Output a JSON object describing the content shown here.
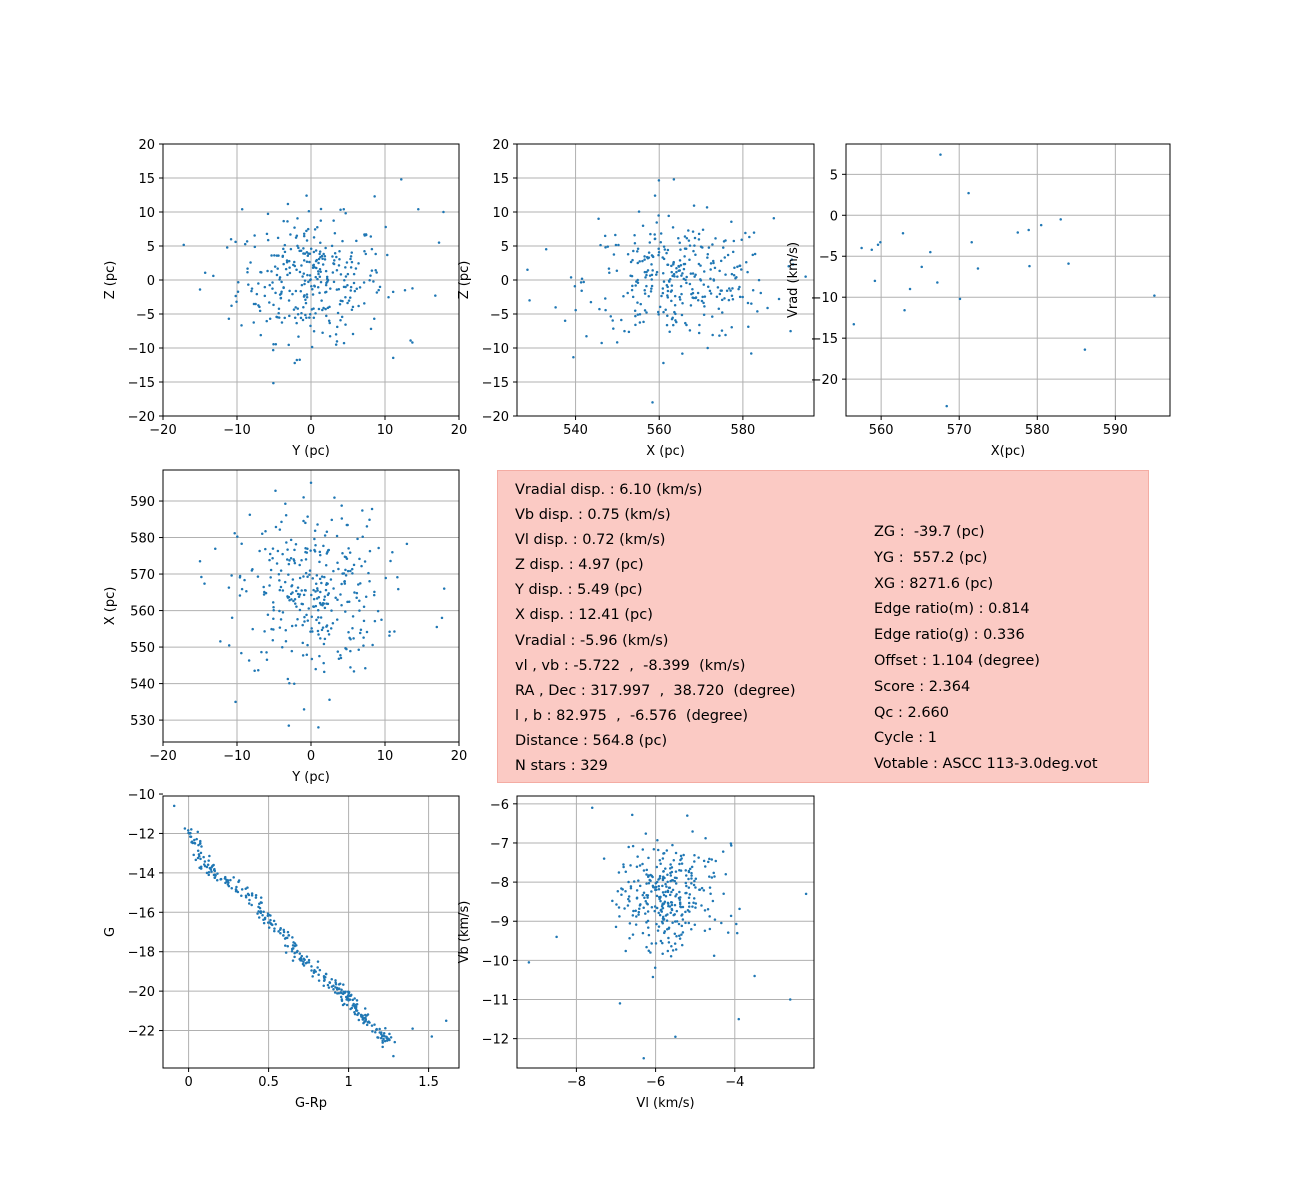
{
  "colors": {
    "points": "#1f77b4",
    "grid": "#b0b0b0",
    "axes": "#000000",
    "info_bg": "#fbcac4"
  },
  "info_panel": {
    "left_lines": [
      "Vradial disp. : 6.10 (km/s)",
      "Vb disp. : 0.75 (km/s)",
      "Vl disp. : 0.72 (km/s)",
      "Z disp. : 4.97 (pc)",
      "Y disp. : 5.49 (pc)",
      "X disp. : 12.41 (pc)",
      "Vradial : -5.96 (km/s)",
      "vl , vb : -5.722  ,  -8.399  (km/s)",
      "RA , Dec : 317.997  ,  38.720  (degree)",
      "l , b : 82.975  ,  -6.576  (degree)",
      "Distance : 564.8 (pc)",
      "N stars : 329"
    ],
    "right_lines": [
      "ZG :  -39.7 (pc)",
      "YG :  557.2 (pc)",
      "XG : 8271.6 (pc)",
      "Edge ratio(m) : 0.814",
      "Edge ratio(g) : 0.336",
      "Offset : 1.104 (degree)",
      "Score : 2.364",
      "Qc : 2.660",
      "Cycle : 1",
      "Votable : ASCC 113-3.0deg.vot"
    ]
  },
  "chart_data": [
    {
      "id": "yz",
      "type": "scatter",
      "xlabel": "Y (pc)",
      "ylabel": "Z (pc)",
      "xlim": [
        -20,
        20
      ],
      "ylim": [
        -20,
        20
      ],
      "xticks": [
        -20,
        -10,
        0,
        10,
        20
      ],
      "yticks": [
        -20,
        -15,
        -10,
        -5,
        0,
        5,
        10,
        15,
        20
      ],
      "grid": true,
      "n_points": 329,
      "center": [
        0,
        0
      ],
      "spread": [
        5.49,
        4.97
      ],
      "points": [
        [
          -15,
          -1.4
        ],
        [
          12.2,
          14.8
        ],
        [
          17.9,
          10
        ],
        [
          -9.3,
          10.4
        ],
        [
          -0.6,
          12.4
        ],
        [
          14.5,
          10.4
        ],
        [
          12.7,
          -1.5
        ],
        [
          13.7,
          -9.2
        ],
        [
          16.8,
          -2.3
        ],
        [
          -11.1,
          -5.7
        ],
        [
          3.4,
          -9.5
        ],
        [
          8.6,
          12.3
        ],
        [
          -2.2,
          -12.2
        ],
        [
          -13.2,
          0.6
        ],
        [
          17.3,
          5.5
        ],
        [
          -10.8,
          6
        ]
      ]
    },
    {
      "id": "xz",
      "type": "scatter",
      "xlabel": "X (pc)",
      "ylabel": "Z (pc)",
      "xlim": [
        526,
        597
      ],
      "ylim": [
        -20,
        20
      ],
      "xticks": [
        540,
        560,
        580
      ],
      "yticks": [
        -20,
        -15,
        -10,
        -5,
        0,
        5,
        10,
        15,
        20
      ],
      "grid": true,
      "n_points": 329,
      "center": [
        564.8,
        0
      ],
      "spread": [
        12.41,
        4.97
      ],
      "points": [
        [
          529,
          -3
        ],
        [
          595,
          0.5
        ],
        [
          563.5,
          14.8
        ],
        [
          559,
          12.4
        ],
        [
          582,
          -10.8
        ],
        [
          561,
          -12.2
        ],
        [
          545.5,
          9
        ],
        [
          592,
          2.3
        ],
        [
          528.5,
          1.5
        ],
        [
          537.5,
          -6
        ]
      ]
    },
    {
      "id": "xvrad",
      "type": "scatter",
      "xlabel": "X(pc)",
      "ylabel": "Vrad (km/s)",
      "xlim": [
        555.5,
        597
      ],
      "ylim": [
        -24.5,
        8.7
      ],
      "xticks": [
        560,
        570,
        580,
        590
      ],
      "yticks": [
        -20,
        -15,
        -10,
        -5,
        0,
        5
      ],
      "grid": true,
      "points": [
        [
          556.5,
          -13.3
        ],
        [
          557.5,
          -4
        ],
        [
          558.8,
          -4.2
        ],
        [
          559.2,
          -8
        ],
        [
          559.6,
          -3.6
        ],
        [
          559.9,
          -3.3
        ],
        [
          562.8,
          -2.2
        ],
        [
          563,
          -11.6
        ],
        [
          563.7,
          -9
        ],
        [
          565.2,
          -6.3
        ],
        [
          566.3,
          -4.5
        ],
        [
          567.2,
          -8.2
        ],
        [
          567.6,
          7.4
        ],
        [
          568.4,
          -23.3
        ],
        [
          570.1,
          -10.2
        ],
        [
          571.2,
          2.7
        ],
        [
          571.6,
          -3.3
        ],
        [
          572.4,
          -6.5
        ],
        [
          577.5,
          -2.1
        ],
        [
          578.9,
          -1.8
        ],
        [
          579,
          -6.2
        ],
        [
          580.5,
          -1.2
        ],
        [
          583,
          -0.5
        ],
        [
          584,
          -5.9
        ],
        [
          586.1,
          -16.4
        ],
        [
          595,
          -9.8
        ]
      ]
    },
    {
      "id": "yx",
      "type": "scatter",
      "xlabel": "Y (pc)",
      "ylabel": "X (pc)",
      "xlim": [
        -20,
        20
      ],
      "ylim": [
        524,
        598.5
      ],
      "xticks": [
        -20,
        -10,
        0,
        10,
        20
      ],
      "yticks": [
        530,
        540,
        550,
        560,
        570,
        580,
        590
      ],
      "grid": true,
      "n_points": 329,
      "center": [
        0,
        564.8
      ],
      "spread": [
        5.49,
        12.41
      ],
      "points": [
        [
          0,
          595
        ],
        [
          -1,
          591
        ],
        [
          -4.8,
          592.8
        ],
        [
          -15,
          573.5
        ],
        [
          -10.2,
          535
        ],
        [
          -3,
          528.5
        ],
        [
          1,
          528
        ],
        [
          18,
          566
        ],
        [
          17,
          555.5
        ],
        [
          17.7,
          558
        ]
      ]
    },
    {
      "id": "cmd",
      "type": "scatter",
      "xlabel": "G-Rp",
      "ylabel": "G",
      "xlim": [
        -0.16,
        1.69
      ],
      "ylim": [
        -23.9,
        -10.1
      ],
      "xticks": [
        0.0,
        0.5,
        1.0,
        1.5
      ],
      "yticks": [
        -10,
        -12,
        -14,
        -16,
        -18,
        -20,
        -22
      ],
      "grid": true,
      "n_points": 329,
      "sequence": [
        [
          0,
          -11.8
        ],
        [
          0.05,
          -12.8
        ],
        [
          0.1,
          -13.6
        ],
        [
          0.2,
          -14.2
        ],
        [
          0.3,
          -14.6
        ],
        [
          0.4,
          -15.4
        ],
        [
          0.5,
          -16.4
        ],
        [
          0.6,
          -17.3
        ],
        [
          0.7,
          -18.2
        ],
        [
          0.8,
          -18.9
        ],
        [
          0.9,
          -19.7
        ],
        [
          1.0,
          -20.3
        ],
        [
          1.05,
          -20.9
        ],
        [
          1.1,
          -21.6
        ],
        [
          1.2,
          -22.3
        ],
        [
          1.25,
          -22.6
        ]
      ],
      "points": [
        [
          -0.09,
          -10.6
        ],
        [
          1.52,
          -22.3
        ],
        [
          1.61,
          -21.5
        ],
        [
          1.28,
          -23.3
        ],
        [
          1.4,
          -21.9
        ]
      ]
    },
    {
      "id": "vlvb",
      "type": "scatter",
      "xlabel": "Vl (km/s)",
      "ylabel": "Vb (km/s)",
      "xlim": [
        -9.5,
        -2.0
      ],
      "ylim": [
        -12.75,
        -5.8
      ],
      "xticks": [
        -8,
        -6,
        -4
      ],
      "yticks": [
        -6,
        -7,
        -8,
        -9,
        -10,
        -11,
        -12
      ],
      "grid": true,
      "n_points": 329,
      "center": [
        -5.722,
        -8.399
      ],
      "spread": [
        0.72,
        0.75
      ],
      "points": [
        [
          -9.2,
          -10.05
        ],
        [
          -7.6,
          -6.1
        ],
        [
          -6.3,
          -12.5
        ],
        [
          -5.5,
          -11.95
        ],
        [
          -2.6,
          -11
        ],
        [
          -2.2,
          -8.3
        ],
        [
          -8.5,
          -9.4
        ],
        [
          -6.9,
          -11.1
        ],
        [
          -3.5,
          -10.4
        ],
        [
          -3.9,
          -11.5
        ],
        [
          -7.3,
          -7.4
        ],
        [
          -5.2,
          -6.3
        ]
      ]
    }
  ]
}
